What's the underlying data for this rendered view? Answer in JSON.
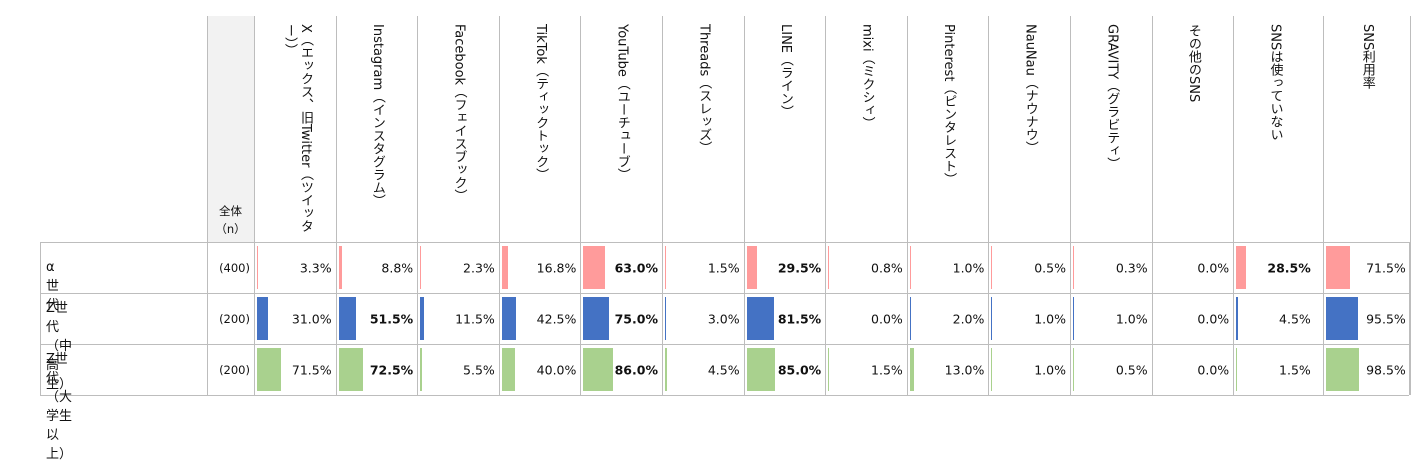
{
  "header": {
    "total_label": "全体",
    "n_label": "（n）"
  },
  "colors": {
    "alpha": "#ff9b9b",
    "gen_z_hs": "#4472c4",
    "gen_z_univ": "#a9d18e"
  },
  "chart_data": {
    "type": "table",
    "columns": [
      "X（エックス、旧Twitter（ツイッター））",
      "Instagram（インスタグラム）",
      "Facebook（フェイスブック）",
      "TikTok（ティックトック）",
      "YouTube（ユーチューブ）",
      "Threads（スレッズ）",
      "LINE（ライン）",
      "mixi（ミクシィ）",
      "Pinterest（ピンタレスト）",
      "NauNau（ナウナウ）",
      "GRAVITY（グラビティ）",
      "その他のSNS",
      "SNSは使っていない",
      "SNS利用率"
    ],
    "rows": [
      {
        "label_lines": [
          "α世代"
        ],
        "n": "(400)",
        "color": "#ff9b9b",
        "values": [
          3.3,
          8.8,
          2.3,
          16.8,
          63.0,
          1.5,
          29.5,
          0.8,
          1.0,
          0.5,
          0.3,
          0.0,
          28.5,
          71.5
        ],
        "display": [
          "3.3%",
          "8.8%",
          "2.3%",
          "16.8%",
          "63.0%",
          "1.5%",
          "29.5%",
          "0.8%",
          "1.0%",
          "0.5%",
          "0.3%",
          "0.0%",
          "28.5%",
          "71.5%"
        ],
        "bold": [
          false,
          false,
          false,
          false,
          true,
          false,
          true,
          false,
          false,
          false,
          false,
          false,
          true,
          false
        ]
      },
      {
        "label_lines": [
          "Z世代",
          "（中高生）"
        ],
        "n": "(200)",
        "color": "#4472c4",
        "values": [
          31.0,
          51.5,
          11.5,
          42.5,
          75.0,
          3.0,
          81.5,
          0.0,
          2.0,
          1.0,
          1.0,
          0.0,
          4.5,
          95.5
        ],
        "display": [
          "31.0%",
          "51.5%",
          "11.5%",
          "42.5%",
          "75.0%",
          "3.0%",
          "81.5%",
          "0.0%",
          "2.0%",
          "1.0%",
          "1.0%",
          "0.0%",
          "4.5%",
          "95.5%"
        ],
        "bold": [
          false,
          true,
          false,
          false,
          true,
          false,
          true,
          false,
          false,
          false,
          false,
          false,
          false,
          false
        ]
      },
      {
        "label_lines": [
          "Z世代",
          "（大学生以上）"
        ],
        "n": "(200)",
        "color": "#a9d18e",
        "values": [
          71.5,
          72.5,
          5.5,
          40.0,
          86.0,
          4.5,
          85.0,
          1.5,
          13.0,
          1.0,
          0.5,
          0.0,
          1.5,
          98.5
        ],
        "display": [
          "71.5%",
          "72.5%",
          "5.5%",
          "40.0%",
          "86.0%",
          "4.5%",
          "85.0%",
          "1.5%",
          "13.0%",
          "1.0%",
          "0.5%",
          "0.0%",
          "1.5%",
          "98.5%"
        ],
        "bold": [
          false,
          true,
          false,
          false,
          true,
          false,
          true,
          false,
          false,
          false,
          false,
          false,
          false,
          false
        ]
      }
    ],
    "bar_max": 100
  }
}
